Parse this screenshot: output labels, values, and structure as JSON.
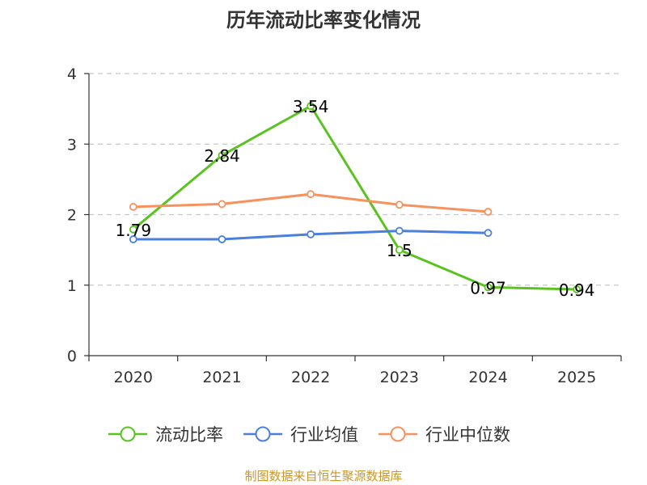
{
  "chart_data": {
    "type": "line",
    "title": "历年流动比率变化情况",
    "categories": [
      "2020",
      "2021",
      "2022",
      "2023",
      "2024",
      "2025"
    ],
    "ylim": [
      0,
      4
    ],
    "yticks": [
      "0",
      "1",
      "2",
      "3",
      "4"
    ],
    "grid": true,
    "legend_position": "bottom",
    "series": [
      {
        "name": "流动比率",
        "color": "#5ac31f",
        "values": [
          1.79,
          2.84,
          3.54,
          1.5,
          0.97,
          0.94
        ],
        "labels": [
          "1.79",
          "2.84",
          "3.54",
          "1.5",
          "0.97",
          "0.94"
        ]
      },
      {
        "name": "行业均值",
        "color": "#4a7fdb",
        "values": [
          1.65,
          1.65,
          1.72,
          1.77,
          1.74,
          null
        ]
      },
      {
        "name": "行业中位数",
        "color": "#f5925e",
        "values": [
          2.11,
          2.15,
          2.29,
          2.14,
          2.04,
          null
        ]
      }
    ]
  },
  "footer": {
    "source": "制图数据来自恒生聚源数据库",
    "color": "#c8962b"
  }
}
